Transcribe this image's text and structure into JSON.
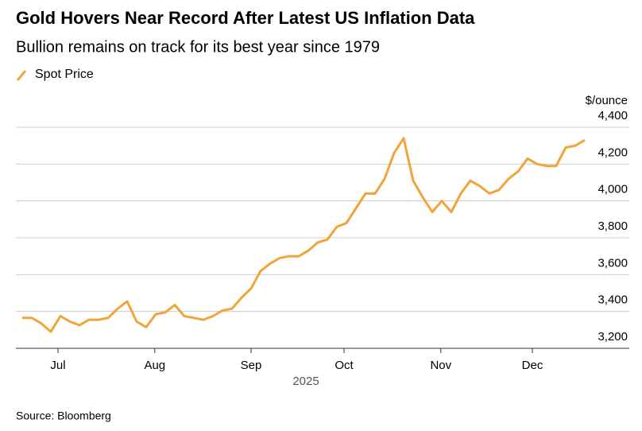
{
  "chart_data": {
    "type": "line",
    "title": "Gold Hovers Near Record After Latest US Inflation Data",
    "subtitle": "Bullion remains on track for its best year since 1979",
    "y_unit": "$/ounce",
    "x_year": "2025",
    "source": "Source: Bloomberg",
    "categories": [
      null,
      null,
      null,
      null,
      null,
      null,
      null,
      null,
      null,
      null,
      null,
      null,
      null,
      null,
      null,
      null,
      null,
      null,
      null,
      null,
      null,
      null,
      null,
      null,
      null,
      null,
      null,
      null,
      null,
      null,
      null,
      null,
      null,
      null,
      null,
      null,
      null,
      null,
      null,
      null,
      null,
      null,
      null,
      null,
      null,
      null,
      null,
      null,
      null,
      null,
      null,
      null,
      null,
      null,
      null,
      null,
      null,
      null,
      null,
      null
    ],
    "series": [
      {
        "name": "Spot Price",
        "color": "#f0a43a",
        "values": [
          3365,
          3365,
          3335,
          3290,
          3375,
          3345,
          3325,
          3355,
          3355,
          3365,
          3415,
          3455,
          3345,
          3315,
          3385,
          3395,
          3435,
          3375,
          3365,
          3355,
          3375,
          3405,
          3415,
          3475,
          3525,
          3620,
          3660,
          3690,
          3700,
          3700,
          3730,
          3775,
          3790,
          3860,
          3880,
          3960,
          4040,
          4040,
          4120,
          4260,
          4340,
          4110,
          4020,
          3940,
          4000,
          3940,
          4040,
          4110,
          4080,
          4040,
          4060,
          4120,
          4160,
          4230,
          4200,
          4190,
          4190,
          4290,
          4300,
          4330
        ]
      }
    ],
    "xlim": [
      0,
      59
    ],
    "xticks": [
      {
        "value": 3.75,
        "label": "Jul"
      },
      {
        "value": 13.9,
        "label": "Aug"
      },
      {
        "value": 24,
        "label": "Sep"
      },
      {
        "value": 33.75,
        "label": "Oct"
      },
      {
        "value": 43.9,
        "label": "Nov"
      },
      {
        "value": 53.5,
        "label": "Dec"
      }
    ],
    "ylim": [
      3200,
      4400
    ],
    "yticks": [
      {
        "value": 3200,
        "label": "3,200"
      },
      {
        "value": 3400,
        "label": "3,400"
      },
      {
        "value": 3600,
        "label": "3,600"
      },
      {
        "value": 3800,
        "label": "3,800"
      },
      {
        "value": 4000,
        "label": "4,000"
      },
      {
        "value": 4200,
        "label": "4,200"
      },
      {
        "value": 4400,
        "label": "4,400"
      }
    ],
    "grid": true
  }
}
